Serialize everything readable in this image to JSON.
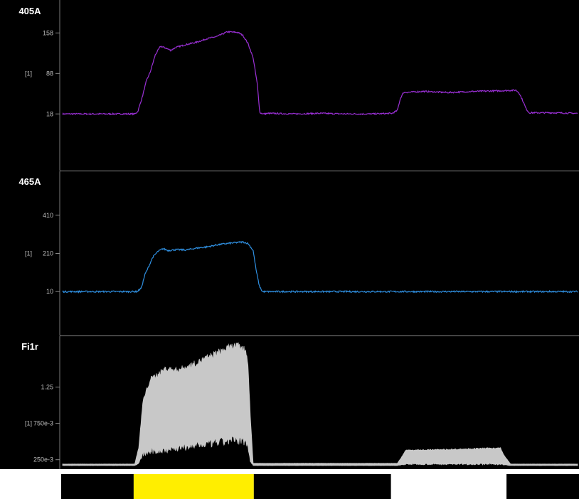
{
  "chart_data": [
    {
      "type": "line",
      "title": "405A",
      "ylabel": "[1]",
      "yticks": [
        18,
        88,
        158
      ],
      "ylim": [
        -80,
        215
      ],
      "color": "#9b30d6",
      "xlim": [
        0,
        100
      ],
      "x": [
        0,
        14,
        14.6,
        15.5,
        16.3,
        17,
        18,
        19,
        20,
        21,
        22,
        24,
        26,
        28,
        30,
        32,
        34,
        35,
        36,
        37,
        37.8,
        38.3,
        39,
        40,
        45,
        50,
        55,
        60,
        64,
        65,
        65.6,
        66.2,
        70,
        75,
        80,
        85,
        88,
        88.6,
        89.4,
        90,
        90.6,
        95,
        100
      ],
      "values": [
        18,
        18,
        22,
        48,
        76,
        90,
        120,
        135,
        132,
        128,
        133,
        138,
        142,
        148,
        152,
        160,
        159,
        154,
        140,
        115,
        70,
        20,
        18,
        19,
        18,
        19,
        18,
        18,
        19,
        24,
        45,
        55,
        57,
        55,
        57,
        58,
        59,
        55,
        40,
        27,
        20,
        20,
        19
      ],
      "noise": 1.2
    },
    {
      "type": "line",
      "title": "465A",
      "ylabel": "[1]",
      "yticks": [
        10,
        210,
        410
      ],
      "ylim": [
        -220,
        640
      ],
      "color": "#2f8fe0",
      "xlim": [
        0,
        100
      ],
      "x": [
        0,
        14.5,
        15.3,
        16,
        16.7,
        17.5,
        18.5,
        19.5,
        20.5,
        22,
        24,
        26,
        28,
        30,
        32,
        33.5,
        35,
        36,
        37,
        37.6,
        38.2,
        38.8,
        100
      ],
      "values": [
        10,
        10,
        30,
        100,
        140,
        190,
        220,
        235,
        225,
        230,
        228,
        238,
        244,
        255,
        262,
        266,
        270,
        262,
        225,
        120,
        40,
        10,
        10
      ],
      "noise": 4
    },
    {
      "type": "area",
      "title": "Fi1r",
      "ylabel": "[1]",
      "ytick_labels": [
        "250e-3",
        "750e-3",
        "1.25"
      ],
      "yticks": [
        0.25,
        0.75,
        1.25
      ],
      "ylim": [
        0.12,
        1.95
      ],
      "color": "#c8c8c8",
      "xlim": [
        0,
        100
      ],
      "x": [
        0,
        14,
        14.8,
        15.6,
        17,
        19,
        20,
        22,
        24,
        26,
        28,
        30,
        32,
        33.5,
        34.5,
        35.5,
        36,
        36.4,
        37,
        65,
        65.8,
        66.6,
        75,
        84,
        85,
        85.8,
        87,
        100
      ],
      "upper": [
        0.19,
        0.19,
        0.42,
        1.05,
        1.35,
        1.45,
        1.5,
        1.48,
        1.52,
        1.58,
        1.65,
        1.72,
        1.78,
        1.82,
        1.8,
        1.76,
        1.6,
        0.9,
        0.2,
        0.2,
        0.28,
        0.38,
        0.39,
        0.41,
        0.41,
        0.3,
        0.19,
        0.19
      ],
      "lower": [
        0.17,
        0.17,
        0.2,
        0.33,
        0.36,
        0.38,
        0.4,
        0.41,
        0.43,
        0.45,
        0.47,
        0.49,
        0.51,
        0.52,
        0.52,
        0.51,
        0.46,
        0.25,
        0.17,
        0.17,
        0.18,
        0.19,
        0.19,
        0.19,
        0.19,
        0.18,
        0.17,
        0.17
      ]
    }
  ],
  "stimulus_bar": {
    "segments": [
      {
        "start": 0,
        "end": 14,
        "color": "#000000"
      },
      {
        "start": 14,
        "end": 37.2,
        "color": "#ffee00"
      },
      {
        "start": 37.2,
        "end": 63.7,
        "color": "#000000"
      },
      {
        "start": 63.7,
        "end": 86,
        "color": "#ffffff"
      },
      {
        "start": 86,
        "end": 100,
        "color": "#000000"
      }
    ]
  }
}
